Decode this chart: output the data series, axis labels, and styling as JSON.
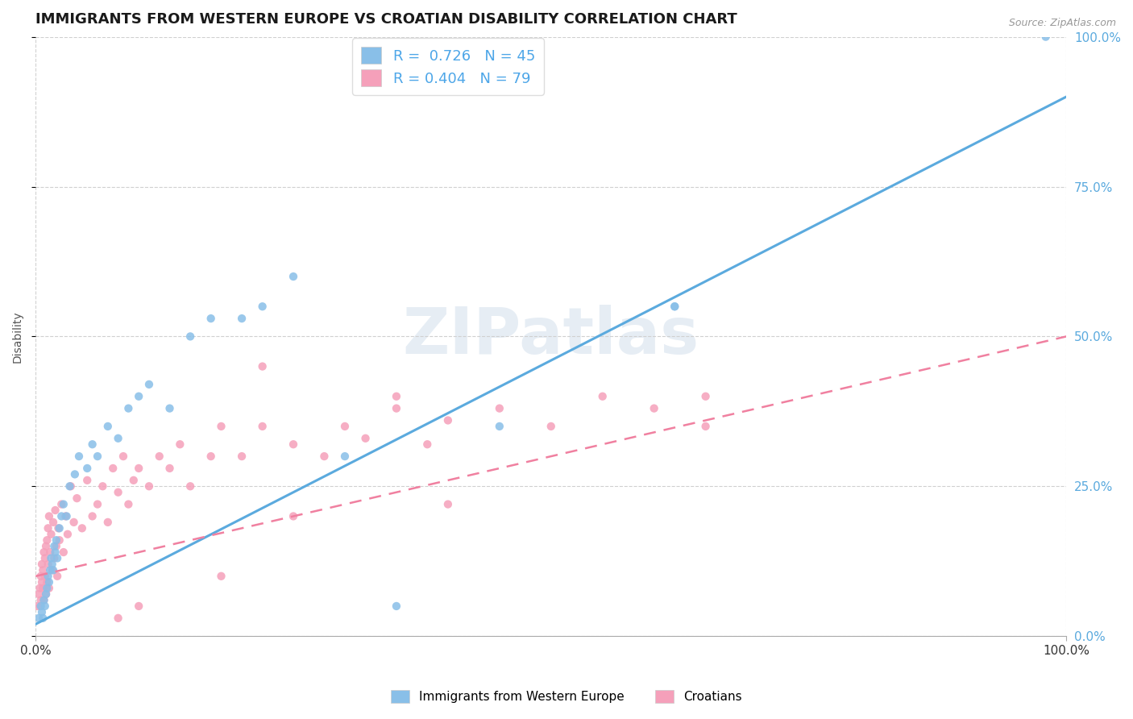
{
  "title": "IMMIGRANTS FROM WESTERN EUROPE VS CROATIAN DISABILITY CORRELATION CHART",
  "source": "Source: ZipAtlas.com",
  "ylabel": "Disability",
  "series1_label": "Immigrants from Western Europe",
  "series2_label": "Croatians",
  "series1_color": "#89bfe8",
  "series2_color": "#f5a0ba",
  "series1_line_color": "#5baade",
  "series2_line_color": "#f080a0",
  "series1_R": 0.726,
  "series1_N": 45,
  "series2_R": 0.404,
  "series2_N": 79,
  "background_color": "#ffffff",
  "watermark": "ZIPatlas",
  "grid_color": "#d0d0d0",
  "title_fontsize": 13,
  "legend_fontsize": 13,
  "blue_line": [
    0,
    2,
    100,
    90
  ],
  "pink_line": [
    0,
    10,
    100,
    50
  ],
  "blue_scatter": {
    "x": [
      0.3,
      0.5,
      0.6,
      0.7,
      0.8,
      0.9,
      1.0,
      1.1,
      1.2,
      1.3,
      1.4,
      1.5,
      1.6,
      1.7,
      1.8,
      1.9,
      2.0,
      2.1,
      2.3,
      2.5,
      2.7,
      3.0,
      3.3,
      3.8,
      4.2,
      5.0,
      5.5,
      6.0,
      7.0,
      8.0,
      9.0,
      10.0,
      11.0,
      13.0,
      15.0,
      17.0,
      20.0,
      22.0,
      25.0,
      30.0,
      35.0,
      45.0,
      62.0,
      98.0,
      62.0
    ],
    "y": [
      3,
      5,
      4,
      3,
      6,
      5,
      7,
      8,
      10,
      9,
      11,
      13,
      12,
      11,
      15,
      14,
      16,
      13,
      18,
      20,
      22,
      20,
      25,
      27,
      30,
      28,
      32,
      30,
      35,
      33,
      38,
      40,
      42,
      38,
      50,
      53,
      53,
      55,
      60,
      30,
      5,
      35,
      55,
      100,
      55
    ]
  },
  "pink_scatter": {
    "x": [
      0.2,
      0.3,
      0.4,
      0.5,
      0.5,
      0.6,
      0.6,
      0.7,
      0.7,
      0.8,
      0.8,
      0.9,
      0.9,
      1.0,
      1.0,
      1.1,
      1.1,
      1.2,
      1.2,
      1.3,
      1.3,
      1.4,
      1.5,
      1.6,
      1.7,
      1.8,
      1.9,
      2.0,
      2.1,
      2.2,
      2.3,
      2.5,
      2.7,
      2.9,
      3.1,
      3.4,
      3.7,
      4.0,
      4.5,
      5.0,
      5.5,
      6.0,
      6.5,
      7.0,
      7.5,
      8.0,
      8.5,
      9.0,
      9.5,
      10.0,
      11.0,
      12.0,
      13.0,
      14.0,
      15.0,
      17.0,
      18.0,
      20.0,
      22.0,
      25.0,
      28.0,
      30.0,
      32.0,
      35.0,
      38.0,
      40.0,
      45.0,
      50.0,
      55.0,
      60.0,
      65.0,
      65.0,
      22.0,
      35.0,
      10.0,
      18.0,
      40.0,
      25.0,
      8.0
    ],
    "y": [
      5,
      7,
      8,
      6,
      10,
      9,
      12,
      8,
      11,
      6,
      14,
      10,
      13,
      7,
      15,
      9,
      16,
      12,
      18,
      8,
      20,
      14,
      17,
      11,
      19,
      13,
      21,
      15,
      10,
      18,
      16,
      22,
      14,
      20,
      17,
      25,
      19,
      23,
      18,
      26,
      20,
      22,
      25,
      19,
      28,
      24,
      30,
      22,
      26,
      28,
      25,
      30,
      28,
      32,
      25,
      30,
      35,
      30,
      35,
      32,
      30,
      35,
      33,
      38,
      32,
      36,
      38,
      35,
      40,
      38,
      40,
      35,
      45,
      40,
      5,
      10,
      22,
      20,
      3
    ]
  }
}
